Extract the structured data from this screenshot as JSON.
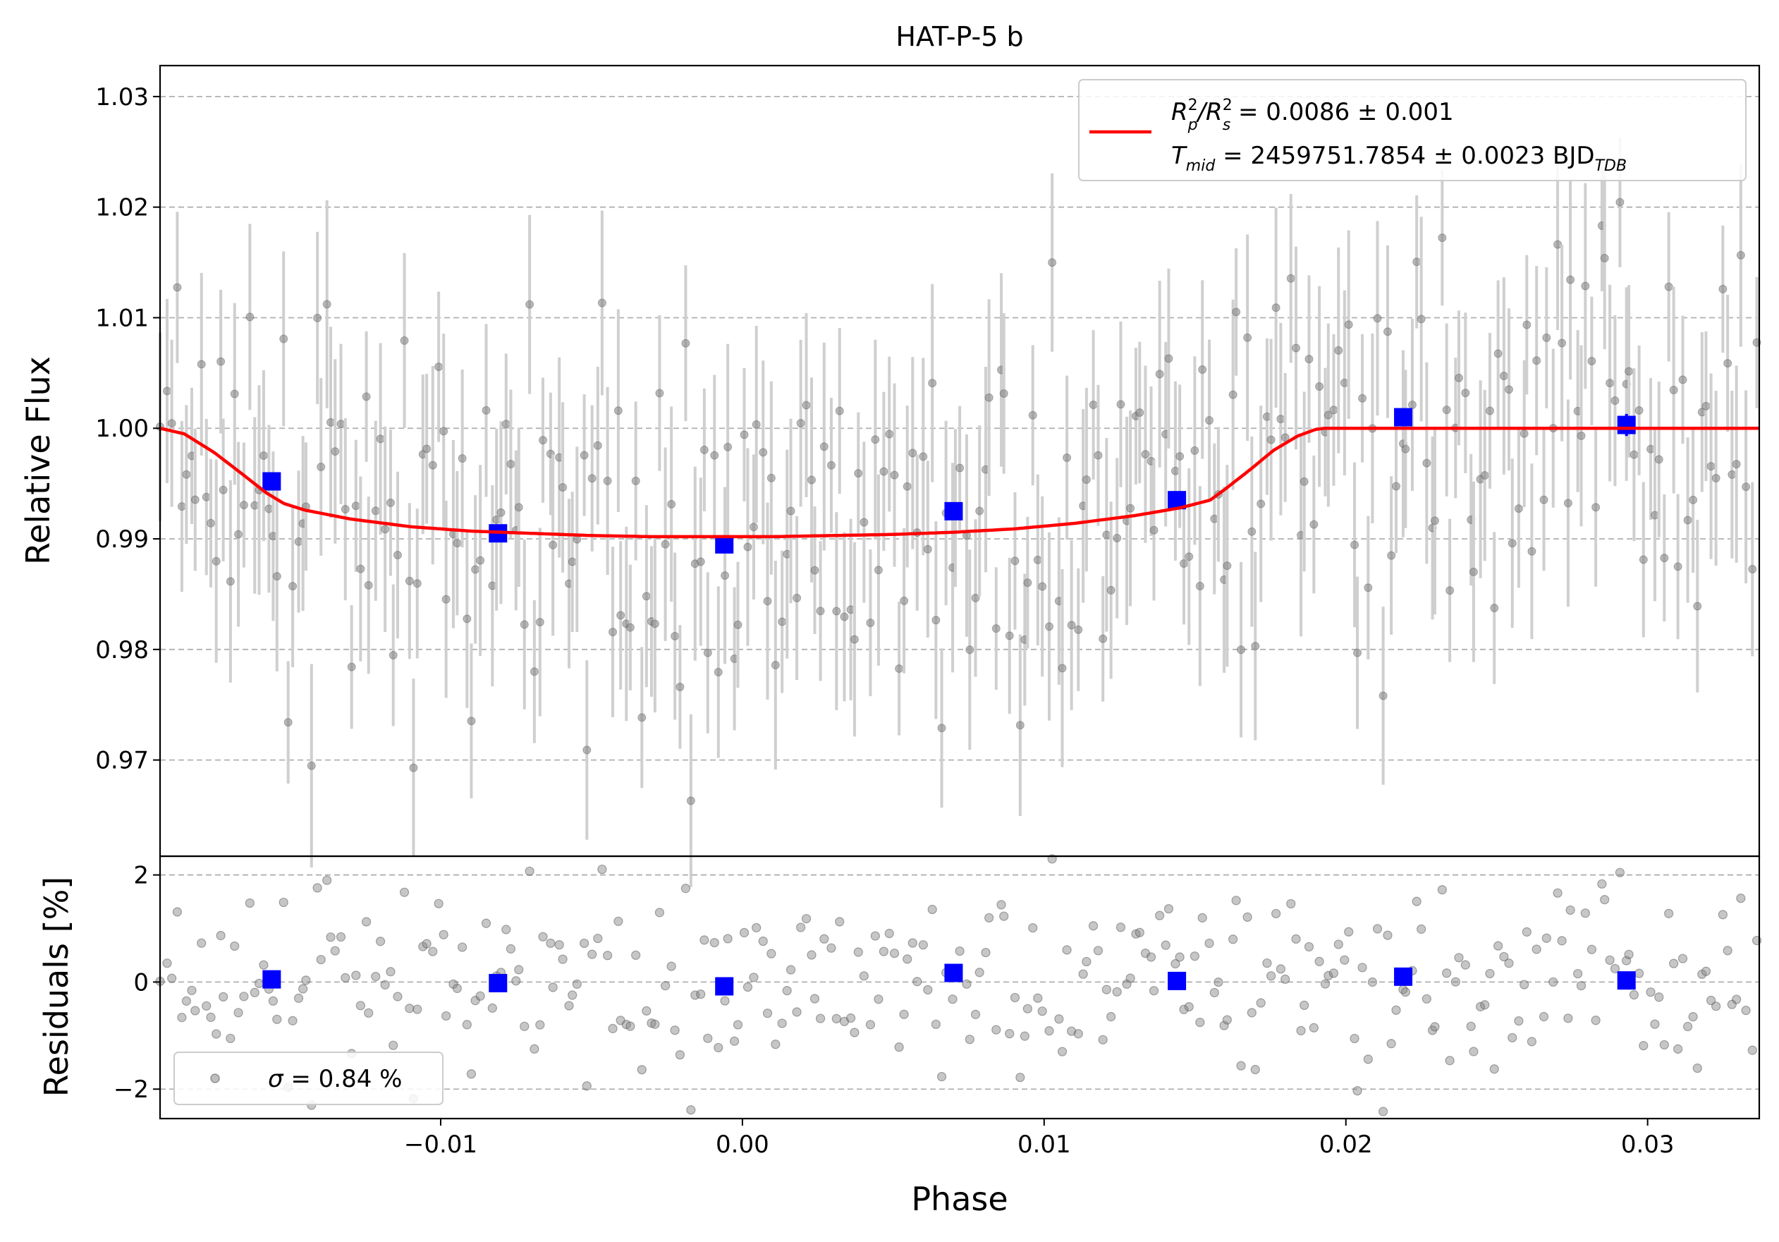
{
  "chart_data": [
    {
      "type": "scatter",
      "panel": "light-curve",
      "title": "HAT-P-5 b",
      "xlabel": "",
      "ylabel": "Relative Flux",
      "xlim": [
        -0.0193,
        0.0337
      ],
      "ylim": [
        0.9613,
        1.0328
      ],
      "yticks": [
        0.97,
        0.98,
        0.99,
        1.0,
        1.01,
        1.02,
        1.03
      ],
      "ytick_labels": [
        "0.97",
        "0.98",
        "0.99",
        "1.00",
        "1.01",
        "1.02",
        "1.03"
      ],
      "grid": "y-dashed",
      "legend": {
        "placement": "top-right",
        "line1": {
          "main": "R",
          "sub1": "p",
          "sup1": "2",
          "slash": "/R",
          "sub2": "s",
          "sup2": "2",
          "rest": " = 0.0086 ± 0.001"
        },
        "line2": {
          "main": "T",
          "sub1": "mid",
          "rest": " = 2459751.7854 ± 0.0023 BJD",
          "sub2": "TDB"
        }
      },
      "series": [
        {
          "role": "binned",
          "x": [
            -0.0156,
            -0.0081,
            -0.0006,
            0.007,
            0.0144,
            0.0219,
            0.0293
          ],
          "y": [
            0.9952,
            0.9905,
            0.9895,
            0.9925,
            0.9935,
            1.001,
            1.0003
          ],
          "yerr": [
            0.0008,
            0.0008,
            0.0008,
            0.0008,
            0.0008,
            0.0008,
            0.001
          ]
        },
        {
          "role": "model",
          "x": [
            -0.0193,
            -0.0185,
            -0.0175,
            -0.0165,
            -0.0158,
            -0.0152,
            -0.0145,
            -0.013,
            -0.011,
            -0.009,
            -0.007,
            -0.005,
            -0.003,
            -0.001,
            0.001,
            0.003,
            0.005,
            0.007,
            0.009,
            0.011,
            0.013,
            0.0145,
            0.0155,
            0.016,
            0.0168,
            0.0176,
            0.0184,
            0.019,
            0.0193,
            0.02,
            0.0337
          ],
          "y": [
            1.0,
            0.9995,
            0.9978,
            0.9957,
            0.9942,
            0.9932,
            0.9926,
            0.9918,
            0.9911,
            0.9907,
            0.9905,
            0.9903,
            0.9902,
            0.9902,
            0.9902,
            0.9903,
            0.9904,
            0.9906,
            0.9909,
            0.9914,
            0.9921,
            0.9928,
            0.9935,
            0.9945,
            0.9962,
            0.998,
            0.9993,
            0.9999,
            1.0,
            1.0,
            1.0
          ]
        }
      ]
    },
    {
      "type": "scatter",
      "panel": "residuals",
      "xlabel": "Phase",
      "ylabel": "Residuals [%]",
      "xlim": [
        -0.0193,
        0.0337
      ],
      "ylim": [
        -2.55,
        2.35
      ],
      "xticks": [
        -0.01,
        0.0,
        0.01,
        0.02,
        0.03
      ],
      "xtick_labels": [
        "−0.01",
        "0.00",
        "0.01",
        "0.02",
        "0.03"
      ],
      "yticks": [
        -2,
        0,
        2
      ],
      "ytick_labels": [
        "−2",
        "0",
        "2"
      ],
      "grid": "y-dashed",
      "legend": {
        "placement": "bottom-left",
        "sigma": "σ",
        "rest": " = 0.84 %"
      },
      "series": [
        {
          "role": "binned",
          "x": [
            -0.0156,
            -0.0081,
            -0.0006,
            0.007,
            0.0144,
            0.0219,
            0.0293
          ],
          "y": [
            0.05,
            -0.02,
            -0.08,
            0.17,
            0.02,
            0.1,
            0.03
          ]
        }
      ]
    }
  ],
  "colors": {
    "raw_points": "#808080",
    "error_bars": "#cfcfcf",
    "binned": "#0000ff",
    "model": "#ff0000",
    "grid": "#b0b0b0"
  }
}
